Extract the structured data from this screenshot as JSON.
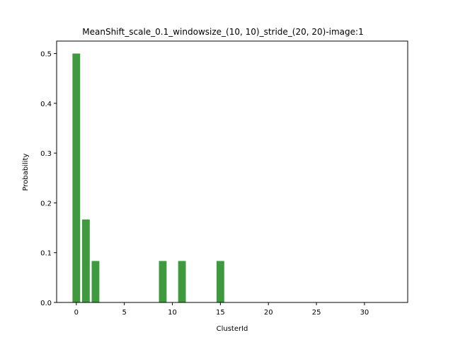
{
  "chart_data": {
    "type": "bar",
    "title": "MeanShift_scale_0.1_windowsize_(10, 10)_stride_(20, 20)-image:1",
    "xlabel": "ClusterId",
    "ylabel": "Probability",
    "xlim": [
      -2.05,
      34.5
    ],
    "ylim": [
      0,
      0.525
    ],
    "x_ticks": [
      0,
      5,
      10,
      15,
      20,
      25,
      30
    ],
    "y_ticks": [
      0.0,
      0.1,
      0.2,
      0.3,
      0.4,
      0.5
    ],
    "x": [
      0,
      1,
      2,
      9,
      11,
      15
    ],
    "values": [
      0.5,
      0.1667,
      0.0833,
      0.0833,
      0.0833,
      0.0833
    ],
    "bar_color": "#3f9a3f",
    "grid": false,
    "legend": "none"
  }
}
